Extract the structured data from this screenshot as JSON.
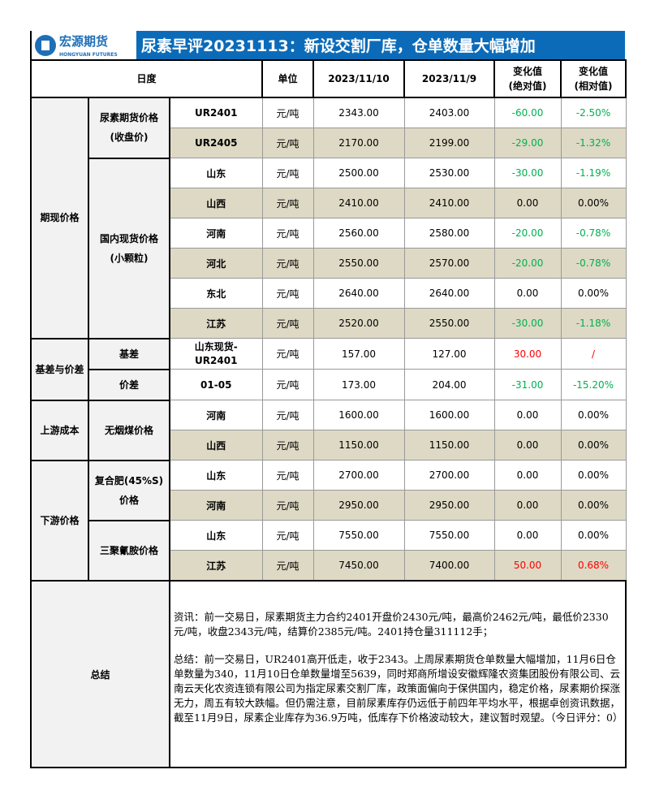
{
  "header": {
    "logo_cn": "宏源期货",
    "logo_en": "HONGYUAN FUTURES",
    "title": "尿素早评20231113：新设交割厂库，仓单数量大幅增加"
  },
  "columns": {
    "date": "日度",
    "unit": "单位",
    "d1": "2023/11/10",
    "d2": "2023/11/9",
    "abs": "变化值\n(绝对值)",
    "rel": "变化值\n(相对值)"
  },
  "colors": {
    "green": "#00b050",
    "red": "#ff0000",
    "title_bg": "#0c6bb8",
    "shade": "#ddd9c4"
  },
  "groups": [
    {
      "label": "期现价格",
      "subgroups": [
        {
          "label": "尿素期货价格\n(收盘价)",
          "rows": [
            {
              "name": "UR2401",
              "unit": "元/吨",
              "d1": "2343.00",
              "d2": "2403.00",
              "abs": "-60.00",
              "rel": "-2.50%",
              "color": "green"
            },
            {
              "name": "UR2405",
              "unit": "元/吨",
              "d1": "2170.00",
              "d2": "2199.00",
              "abs": "-29.00",
              "rel": "-1.32%",
              "color": "green"
            }
          ]
        },
        {
          "label": "国内现货价格\n(小颗粒)",
          "rows": [
            {
              "name": "山东",
              "unit": "元/吨",
              "d1": "2500.00",
              "d2": "2530.00",
              "abs": "-30.00",
              "rel": "-1.19%",
              "color": "green"
            },
            {
              "name": "山西",
              "unit": "元/吨",
              "d1": "2410.00",
              "d2": "2410.00",
              "abs": "0.00",
              "rel": "0.00%",
              "color": "black"
            },
            {
              "name": "河南",
              "unit": "元/吨",
              "d1": "2560.00",
              "d2": "2580.00",
              "abs": "-20.00",
              "rel": "-0.78%",
              "color": "green"
            },
            {
              "name": "河北",
              "unit": "元/吨",
              "d1": "2550.00",
              "d2": "2570.00",
              "abs": "-20.00",
              "rel": "-0.78%",
              "color": "green"
            },
            {
              "name": "东北",
              "unit": "元/吨",
              "d1": "2640.00",
              "d2": "2640.00",
              "abs": "0.00",
              "rel": "0.00%",
              "color": "black"
            },
            {
              "name": "江苏",
              "unit": "元/吨",
              "d1": "2520.00",
              "d2": "2550.00",
              "abs": "-30.00",
              "rel": "-1.18%",
              "color": "green"
            }
          ]
        }
      ]
    },
    {
      "label": "基差与价差",
      "subgroups": [
        {
          "label": "基差",
          "rows": [
            {
              "name": "山东现货-\nUR2401",
              "unit": "元/吨",
              "d1": "157.00",
              "d2": "127.00",
              "abs": "30.00",
              "rel": "/",
              "color": "red"
            }
          ]
        },
        {
          "label": "价差",
          "rows": [
            {
              "name": "01-05",
              "unit": "元/吨",
              "d1": "173.00",
              "d2": "204.00",
              "abs": "-31.00",
              "rel": "-15.20%",
              "color": "green"
            }
          ]
        }
      ]
    },
    {
      "label": "上游成本",
      "subgroups": [
        {
          "label": "无烟煤价格",
          "rows": [
            {
              "name": "河南",
              "unit": "元/吨",
              "d1": "1600.00",
              "d2": "1600.00",
              "abs": "0.00",
              "rel": "0.00%",
              "color": "black"
            },
            {
              "name": "山西",
              "unit": "元/吨",
              "d1": "1150.00",
              "d2": "1150.00",
              "abs": "0.00",
              "rel": "0.00%",
              "color": "black"
            }
          ]
        }
      ]
    },
    {
      "label": "下游价格",
      "subgroups": [
        {
          "label": "复合肥(45%S)\n价格",
          "rows": [
            {
              "name": "山东",
              "unit": "元/吨",
              "d1": "2700.00",
              "d2": "2700.00",
              "abs": "0.00",
              "rel": "0.00%",
              "color": "black"
            },
            {
              "name": "河南",
              "unit": "元/吨",
              "d1": "2950.00",
              "d2": "2950.00",
              "abs": "0.00",
              "rel": "0.00%",
              "color": "black"
            }
          ]
        },
        {
          "label": "三聚氰胺价格",
          "rows": [
            {
              "name": "山东",
              "unit": "元/吨",
              "d1": "7550.00",
              "d2": "7550.00",
              "abs": "0.00",
              "rel": "0.00%",
              "color": "black"
            },
            {
              "name": "江苏",
              "unit": "元/吨",
              "d1": "7450.00",
              "d2": "7400.00",
              "abs": "50.00",
              "rel": "0.68%",
              "color": "red"
            }
          ]
        }
      ]
    }
  ],
  "summary": {
    "label": "总结",
    "info": "资讯：前一交易日，尿素期货主力合约2401开盘价2430元/吨，最高价2462元/吨，最低价2330元/吨，收盘2343元/吨，结算价2385元/吨。2401持仓量311112手；",
    "conclusion": "总结：前一交易日，UR2401高开低走，收于2343。上周尿素期货仓单数量大幅增加，11月6日仓单数量为340，11月10日仓单数量增至5639，同时郑商所增设安徽辉隆农资集团股份有限公司、云南云天化农资连锁有限公司为指定尿素交割厂库，政策面偏向于保供国内，稳定价格，尿素期价探涨无力，周五有较大跌幅。但仍需注意，目前尿素库存仍远低于前四年平均水平，根据卓创资讯数据，截至11月9日，尿素企业库存为36.9万吨，低库存下价格波动较大，建议暂时观望。（今日评分：0）"
  }
}
